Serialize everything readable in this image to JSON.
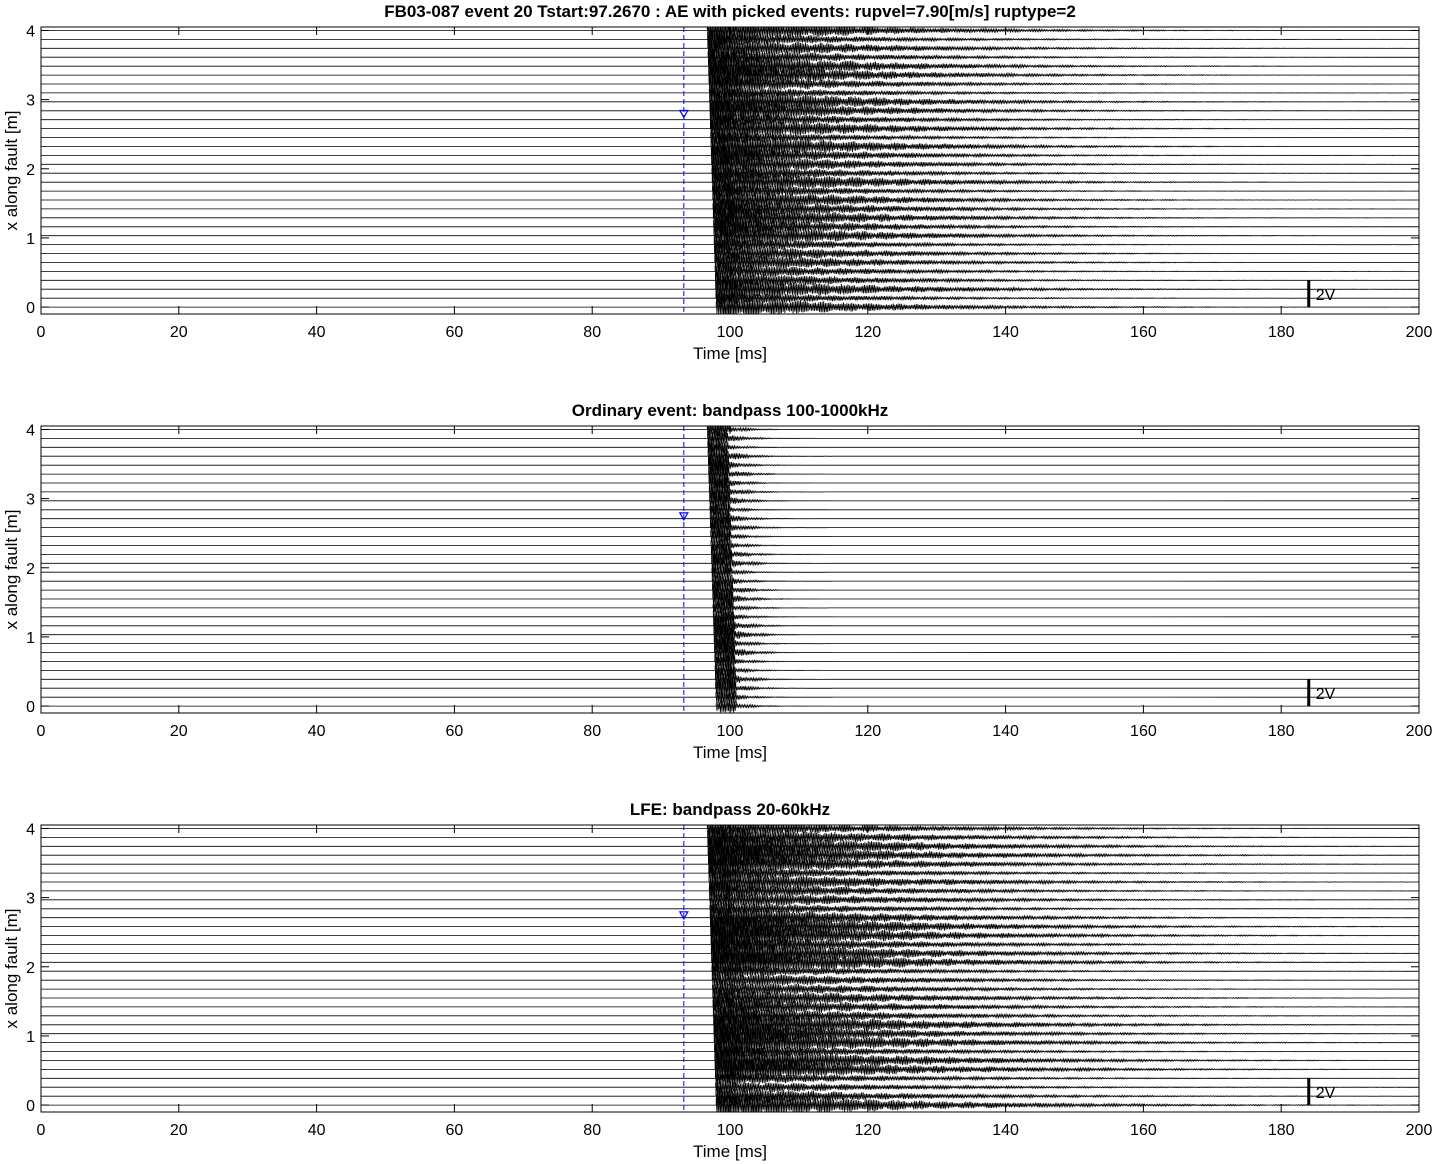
{
  "chart_data": [
    {
      "type": "line",
      "title": "FB03-087 event 20 Tstart:97.2670 : AE with picked events: rupvel=7.90[m/s] ruptype=2",
      "xlabel": "Time [ms]",
      "ylabel": "x along fault [m]",
      "xlim": [
        0,
        200
      ],
      "ylim": [
        -0.1,
        4.05
      ],
      "xticks": [
        "0",
        "20",
        "40",
        "60",
        "80",
        "100",
        "120",
        "140",
        "160",
        "180",
        "200"
      ],
      "yticks": [
        "0",
        "1",
        "2",
        "3",
        "4"
      ],
      "grid": false,
      "pick_time_ms": 93.3,
      "pick_marker_x_m": 2.8,
      "onset_ms_at_x0": 98.0,
      "onset_ms_at_x4": 96.7,
      "coda_end_ms": 205,
      "coda_decay_ms": 20,
      "amplitude_scale": 1.0,
      "scale_bar_label": "2V",
      "colors": {
        "traces": "#000000",
        "pick_line": "#0000ff"
      }
    },
    {
      "type": "line",
      "title": "Ordinary event: bandpass 100-1000kHz",
      "xlabel": "Time [ms]",
      "ylabel": "x along fault [m]",
      "xlim": [
        0,
        200
      ],
      "ylim": [
        -0.1,
        4.05
      ],
      "xticks": [
        "0",
        "20",
        "40",
        "60",
        "80",
        "100",
        "120",
        "140",
        "160",
        "180",
        "200"
      ],
      "yticks": [
        "0",
        "1",
        "2",
        "3",
        "4"
      ],
      "grid": false,
      "pick_time_ms": 93.3,
      "pick_marker_x_m": 2.75,
      "onset_ms_at_x0": 98.0,
      "onset_ms_at_x4": 96.7,
      "coda_end_ms": 115,
      "coda_decay_ms": 3,
      "amplitude_scale": 0.9,
      "scale_bar_label": "2V",
      "colors": {
        "traces": "#000000",
        "pick_line": "#0000ff"
      }
    },
    {
      "type": "line",
      "title": "LFE: bandpass 20-60kHz",
      "xlabel": "Time [ms]",
      "ylabel": "x along fault [m]",
      "xlim": [
        0,
        200
      ],
      "ylim": [
        -0.1,
        4.05
      ],
      "xticks": [
        "0",
        "20",
        "40",
        "60",
        "80",
        "100",
        "120",
        "140",
        "160",
        "180",
        "200"
      ],
      "yticks": [
        "0",
        "1",
        "2",
        "3",
        "4"
      ],
      "grid": false,
      "pick_time_ms": 93.3,
      "pick_marker_x_m": 2.75,
      "onset_ms_at_x0": 98.0,
      "onset_ms_at_x4": 96.7,
      "coda_end_ms": 205,
      "coda_decay_ms": 24,
      "amplitude_scale": 1.05,
      "scale_bar_label": "2V",
      "colors": {
        "traces": "#000000",
        "pick_line": "#0000ff"
      }
    }
  ]
}
